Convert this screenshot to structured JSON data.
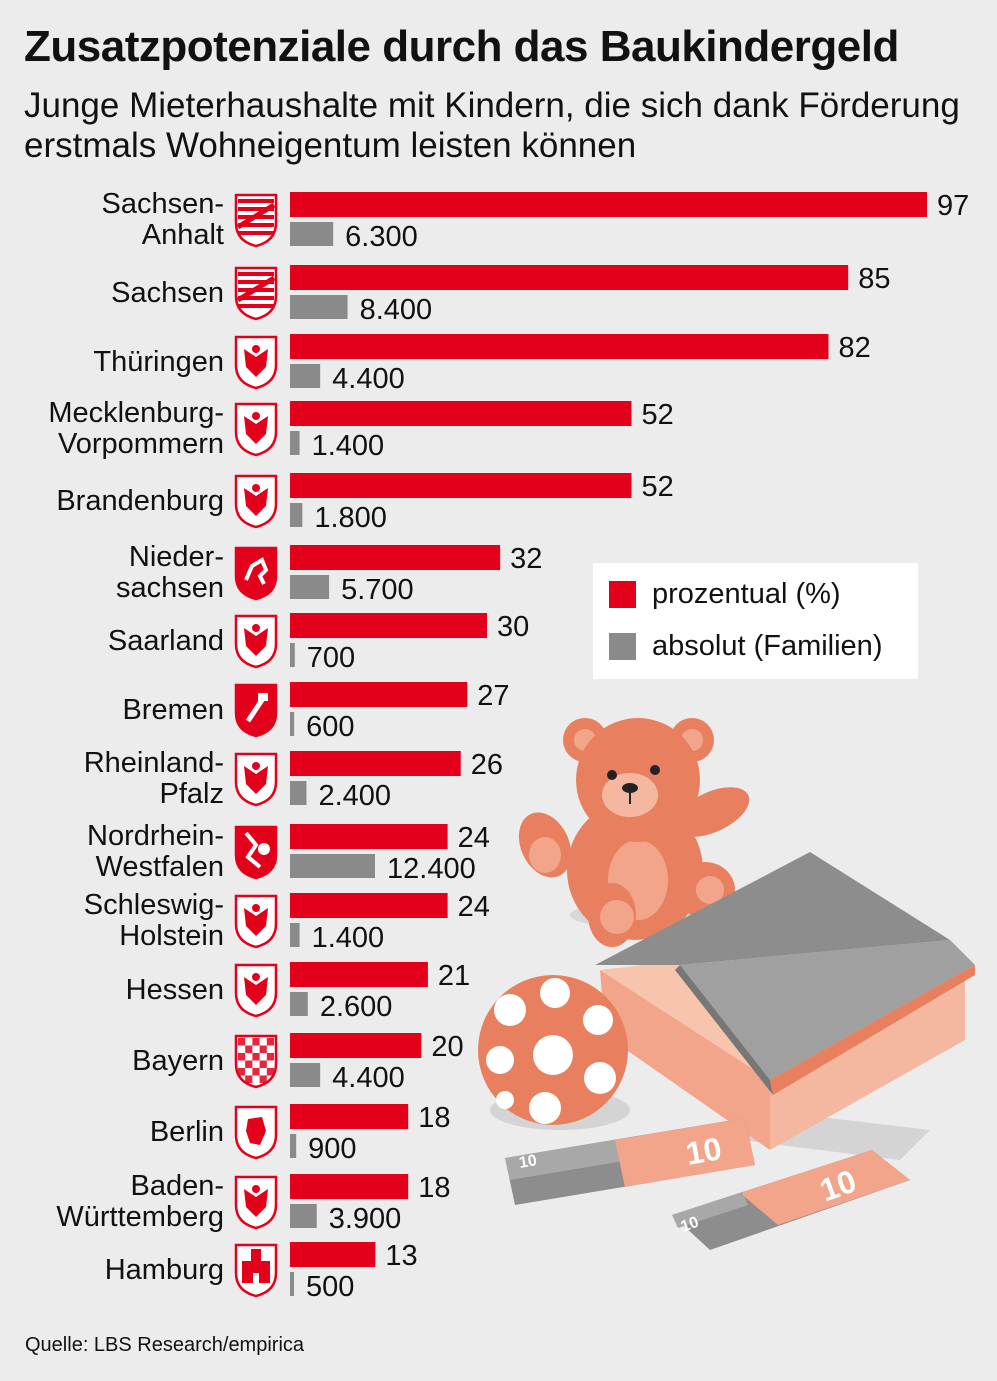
{
  "colors": {
    "percent": "#e3001b",
    "absolute": "#8a8a8a",
    "background": "#ececec"
  },
  "header": {
    "title": "Zusatzpotenziale durch das Baukindergeld",
    "subtitle": "Junge Mieterhaushalte mit Kindern, die sich dank Förderung erstmals Wohneigentum leisten können"
  },
  "legend": {
    "percent_label": "prozentual (%)",
    "absolute_label": "absolut (Familien)"
  },
  "source": "Quelle: LBS Research/empirica",
  "illustration": {
    "banknote_value": "10",
    "icons": [
      "teddy-bear-icon",
      "ball-icon",
      "house-icon",
      "banknote-icon"
    ]
  },
  "chart_data": {
    "type": "bar",
    "orientation": "horizontal",
    "categories": [
      "Sachsen-Anhalt",
      "Sachsen",
      "Thüringen",
      "Mecklenburg-Vorpommern",
      "Brandenburg",
      "Niedersachsen",
      "Saarland",
      "Bremen",
      "Rheinland-Pfalz",
      "Nordrhein-Westfalen",
      "Schleswig-Holstein",
      "Hessen",
      "Bayern",
      "Berlin",
      "Baden-Württemberg",
      "Hamburg"
    ],
    "category_lines": [
      [
        "Sachsen-",
        "Anhalt"
      ],
      [
        "Sachsen"
      ],
      [
        "Thüringen"
      ],
      [
        "Mecklenburg-",
        "Vorpommern"
      ],
      [
        "Brandenburg"
      ],
      [
        "Nieder-",
        "sachsen"
      ],
      [
        "Saarland"
      ],
      [
        "Bremen"
      ],
      [
        "Rheinland-",
        "Pfalz"
      ],
      [
        "Nordrhein-",
        "Westfalen"
      ],
      [
        "Schleswig-",
        "Holstein"
      ],
      [
        "Hessen"
      ],
      [
        "Bayern"
      ],
      [
        "Berlin"
      ],
      [
        "Baden-",
        "Württemberg"
      ],
      [
        "Hamburg"
      ]
    ],
    "series": [
      {
        "name": "prozentual (%)",
        "values": [
          97,
          85,
          82,
          52,
          52,
          32,
          30,
          27,
          26,
          24,
          24,
          21,
          20,
          18,
          18,
          13
        ],
        "labels": [
          "97",
          "85",
          "82",
          "52",
          "52",
          "32",
          "30",
          "27",
          "26",
          "24",
          "24",
          "21",
          "20",
          "18",
          "18",
          "13"
        ]
      },
      {
        "name": "absolut (Familien)",
        "values": [
          6300,
          8400,
          4400,
          1400,
          1800,
          5700,
          700,
          600,
          2400,
          12400,
          1400,
          2600,
          4400,
          900,
          3900,
          500
        ],
        "labels": [
          "6.300",
          "8.400",
          "4.400",
          "1.400",
          "1.800",
          "5.700",
          "700",
          "600",
          "2.400",
          "12.400",
          "1.400",
          "2.600",
          "4.400",
          "900",
          "3.900",
          "500"
        ]
      }
    ],
    "legend_position": "right",
    "grid": false,
    "coat_of_arms_icons": [
      "sachsen-anhalt-coat-of-arms-icon",
      "sachsen-coat-of-arms-icon",
      "thueringen-coat-of-arms-icon",
      "mecklenburg-vorpommern-coat-of-arms-icon",
      "brandenburg-coat-of-arms-icon",
      "niedersachsen-coat-of-arms-icon",
      "saarland-coat-of-arms-icon",
      "bremen-coat-of-arms-icon",
      "rheinland-pfalz-coat-of-arms-icon",
      "nordrhein-westfalen-coat-of-arms-icon",
      "schleswig-holstein-coat-of-arms-icon",
      "hessen-coat-of-arms-icon",
      "bayern-coat-of-arms-icon",
      "berlin-coat-of-arms-icon",
      "baden-wuerttemberg-coat-of-arms-icon",
      "hamburg-coat-of-arms-icon"
    ]
  }
}
